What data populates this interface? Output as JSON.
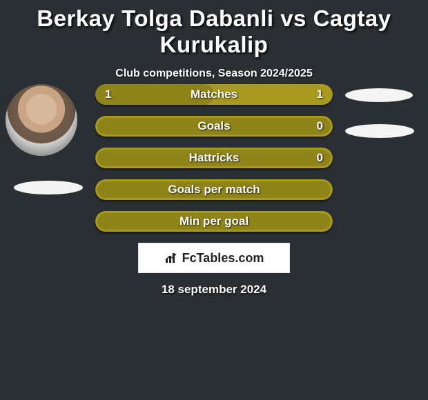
{
  "title": "Berkay Tolga Dabanli vs Cagtay Kurukalip",
  "subtitle": "Club competitions, Season 2024/2025",
  "date": "18 september 2024",
  "brand": "FcTables.com",
  "colors": {
    "background": "#2a2f33",
    "bar_primary": "#a89a1f",
    "bar_inner": "#8f8419",
    "text": "#ffffff"
  },
  "bars": [
    {
      "label": "Matches",
      "left": "1",
      "right": "1",
      "left_pct": 50,
      "show_left": true,
      "show_right": true
    },
    {
      "label": "Goals",
      "left": "",
      "right": "0",
      "left_pct": 100,
      "show_left": false,
      "show_right": true
    },
    {
      "label": "Hattricks",
      "left": "",
      "right": "0",
      "left_pct": 100,
      "show_left": false,
      "show_right": true
    },
    {
      "label": "Goals per match",
      "left": "",
      "right": "",
      "left_pct": 100,
      "show_left": false,
      "show_right": false
    },
    {
      "label": "Min per goal",
      "left": "",
      "right": "",
      "left_pct": 100,
      "show_left": false,
      "show_right": false
    }
  ]
}
